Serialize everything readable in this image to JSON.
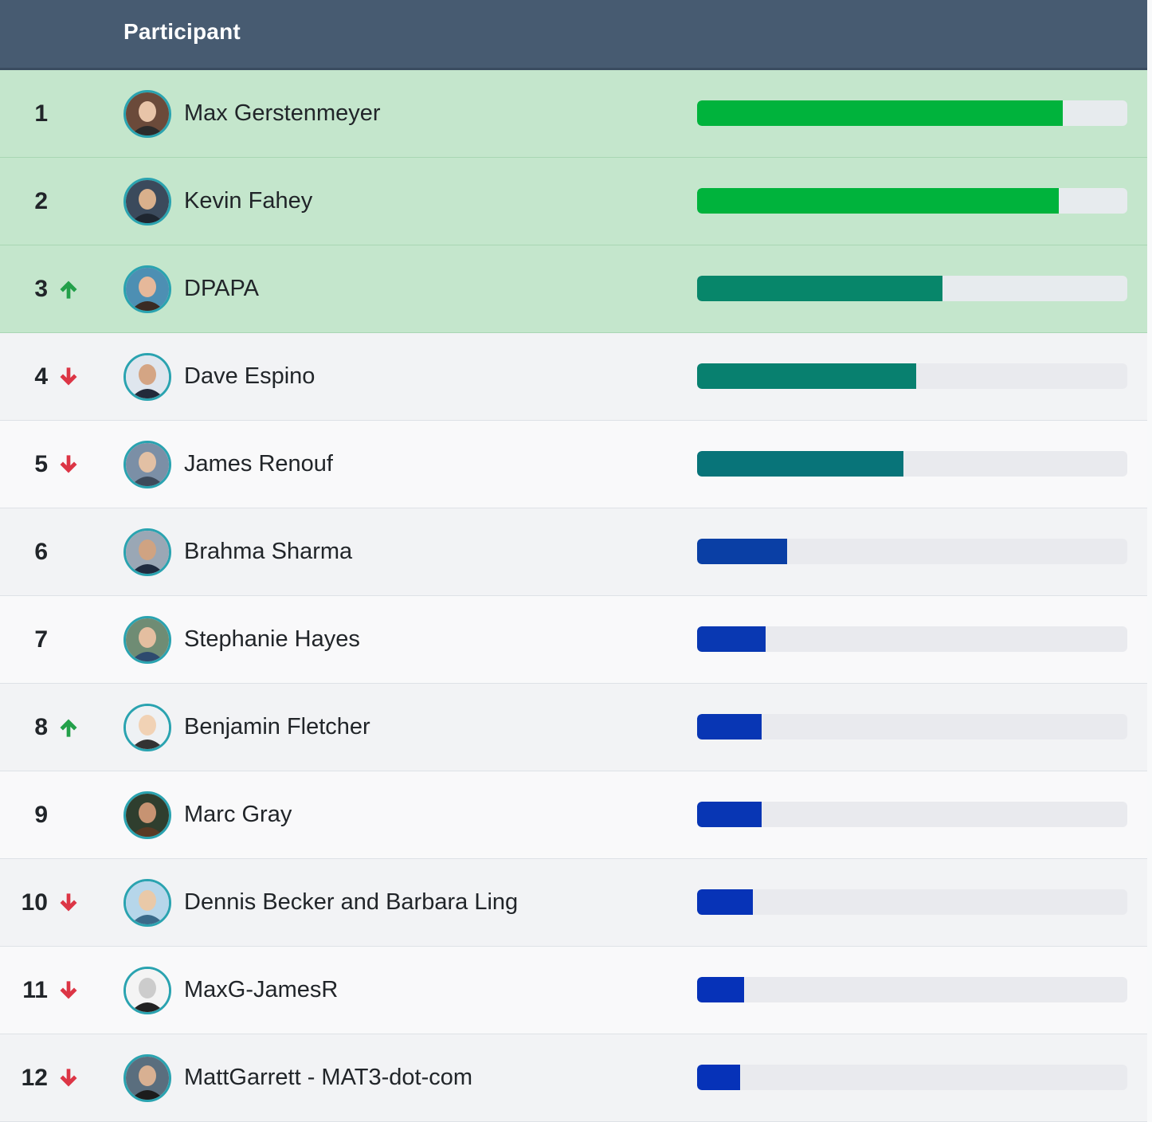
{
  "header": {
    "title": "Participant"
  },
  "colors": {
    "header_bg": "#475b71",
    "top_row_bg": "#c4e6cc",
    "trend_up": "#23a04a",
    "trend_down": "#dc3545",
    "avatar_ring": "#2aa3b0"
  },
  "participants": [
    {
      "rank": "1",
      "name": "Max Gerstenmeyer",
      "trend": "none",
      "progress": 0.85,
      "bar_color": "#00b33c",
      "avatar_icon": "avatar-icon"
    },
    {
      "rank": "2",
      "name": "Kevin Fahey",
      "trend": "none",
      "progress": 0.84,
      "bar_color": "#00b33c",
      "avatar_icon": "avatar-icon"
    },
    {
      "rank": "3",
      "name": "DPAPA",
      "trend": "up",
      "progress": 0.57,
      "bar_color": "#07866a",
      "avatar_icon": "avatar-icon"
    },
    {
      "rank": "4",
      "name": "Dave Espino",
      "trend": "down",
      "progress": 0.51,
      "bar_color": "#08806f",
      "avatar_icon": "avatar-icon"
    },
    {
      "rank": "5",
      "name": "James Renouf",
      "trend": "down",
      "progress": 0.48,
      "bar_color": "#087479",
      "avatar_icon": "avatar-icon"
    },
    {
      "rank": "6",
      "name": "Brahma Sharma",
      "trend": "none",
      "progress": 0.21,
      "bar_color": "#0a3fa5",
      "avatar_icon": "avatar-icon"
    },
    {
      "rank": "7",
      "name": "Stephanie Hayes",
      "trend": "none",
      "progress": 0.16,
      "bar_color": "#0938b2",
      "avatar_icon": "avatar-icon"
    },
    {
      "rank": "8",
      "name": "Benjamin Fletcher",
      "trend": "up",
      "progress": 0.15,
      "bar_color": "#0836b4",
      "avatar_icon": "avatar-icon"
    },
    {
      "rank": "9",
      "name": "Marc Gray",
      "trend": "none",
      "progress": 0.15,
      "bar_color": "#0836b4",
      "avatar_icon": "avatar-icon"
    },
    {
      "rank": "10",
      "name": "Dennis Becker and Barbara Ling",
      "trend": "down",
      "progress": 0.13,
      "bar_color": "#0733b7",
      "avatar_icon": "avatar-icon"
    },
    {
      "rank": "11",
      "name": "MaxG-JamesR",
      "trend": "down",
      "progress": 0.11,
      "bar_color": "#0632b8",
      "avatar_icon": "avatar-icon"
    },
    {
      "rank": "12",
      "name": "MattGarrett - MAT3-dot-com",
      "trend": "down",
      "progress": 0.1,
      "bar_color": "#0632b8",
      "avatar_icon": "avatar-icon"
    }
  ]
}
